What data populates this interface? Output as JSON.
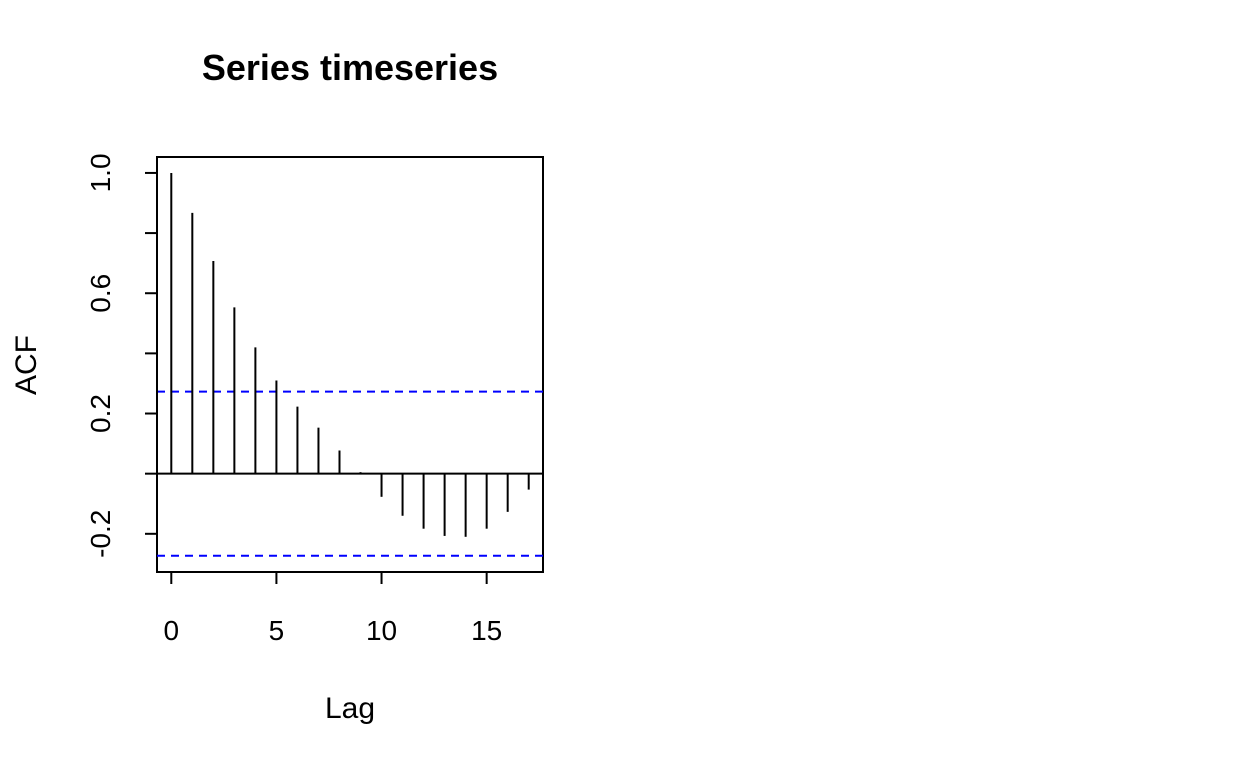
{
  "chart_data": {
    "type": "bar",
    "title": "Series  timeseries",
    "xlabel": "Lag",
    "ylabel": "ACF",
    "x": [
      0,
      1,
      2,
      3,
      4,
      5,
      6,
      7,
      8,
      9,
      10,
      11,
      12,
      13,
      14,
      15,
      16,
      17
    ],
    "values": [
      1.0,
      0.867,
      0.707,
      0.553,
      0.42,
      0.31,
      0.223,
      0.153,
      0.077,
      0.005,
      -0.077,
      -0.14,
      -0.183,
      -0.207,
      -0.21,
      -0.183,
      -0.127,
      -0.053
    ],
    "xlim": [
      -0.68,
      17.68
    ],
    "ylim": [
      -0.327,
      1.053
    ],
    "x_ticks": [
      "0",
      "5",
      "10",
      "15"
    ],
    "y_ticks": [
      "-0.2",
      "0.2",
      "0.6",
      "1.0"
    ],
    "x_tick_values": [
      0,
      5,
      10,
      15
    ],
    "y_tick_values": [
      -0.2,
      0.0,
      0.2,
      0.4,
      0.6,
      0.8,
      1.0
    ],
    "y_tick_label_values": [
      -0.2,
      0.2,
      0.6,
      1.0
    ],
    "confidence_bound": 0.273,
    "zero_line": true,
    "grid": false,
    "colors": {
      "bars": "#000000",
      "confidence_lines": "#0000ff",
      "frame": "#000000"
    }
  }
}
